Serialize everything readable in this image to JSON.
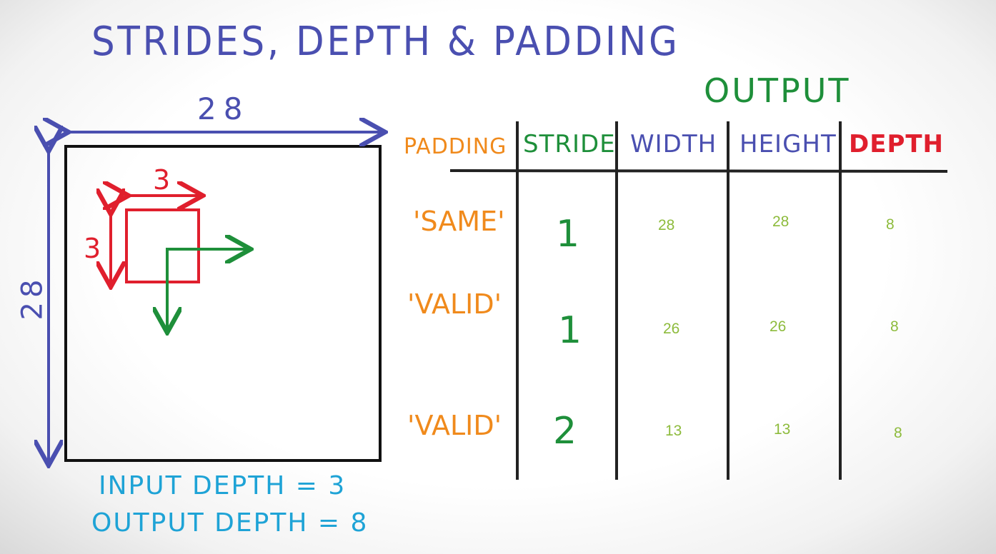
{
  "title": "STRIDES, DEPTH & PADDING",
  "input": {
    "width_label": "28",
    "height_label": "28",
    "filter_width_label": "3",
    "filter_height_label": "3"
  },
  "notes": {
    "input_depth": "INPUT DEPTH = 3",
    "output_depth": "OUTPUT DEPTH = 8"
  },
  "table": {
    "output_header": "OUTPUT",
    "headers": {
      "padding": "PADDING",
      "stride": "STRIDE",
      "width": "WIDTH",
      "height": "HEIGHT",
      "depth": "DEPTH"
    },
    "rows": [
      {
        "padding": "'SAME'",
        "stride": "1",
        "width": "28",
        "height": "28",
        "depth": "8"
      },
      {
        "padding": "'VALID'",
        "stride": "1",
        "width": "26",
        "height": "26",
        "depth": "8"
      },
      {
        "padding": "'VALID'",
        "stride": "2",
        "width": "13",
        "height": "13",
        "depth": "8"
      }
    ]
  },
  "colors": {
    "blue": "#4a4fb0",
    "red": "#e01f2d",
    "green": "#1e8f3a",
    "orange": "#f08a1c",
    "lime": "#8dbb3c",
    "cyan": "#1ea3d6"
  }
}
